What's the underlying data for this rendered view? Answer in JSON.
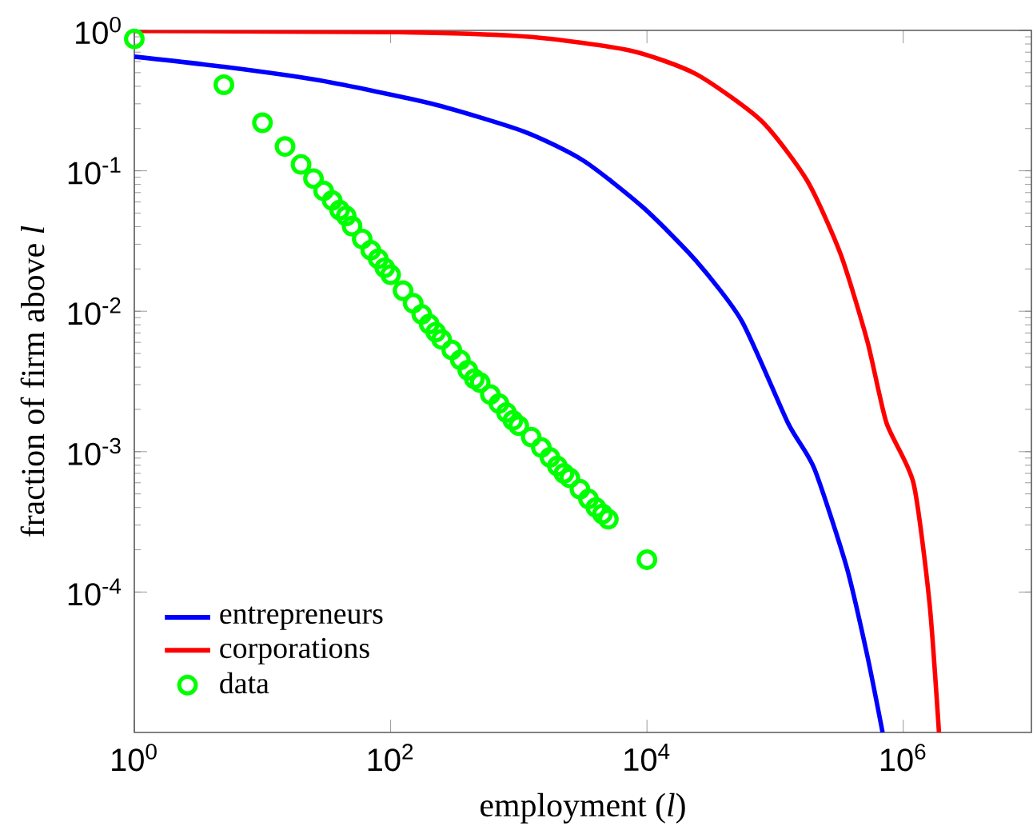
{
  "chart_data": {
    "type": "line",
    "xlabel": "employment (*l*)",
    "ylabel": "fraction of firm above *l*",
    "log": "xy",
    "legend": "bottom left",
    "xlim": [
      1,
      10000000
    ],
    "ylim": [
      1e-05,
      1
    ],
    "xticks": [
      {
        "value": 1,
        "label": "10$^{0}$"
      },
      {
        "value": 100,
        "label": "10$^{2}$"
      },
      {
        "value": 10000,
        "label": "10$^{4}$"
      },
      {
        "value": 1000000,
        "label": "10$^{6}$"
      }
    ],
    "yticks": [
      {
        "value": 0.0001,
        "label": "10$^{-4}$"
      },
      {
        "value": 0.001,
        "label": "10$^{-3}$"
      },
      {
        "value": 0.01,
        "label": "10$^{-2}$"
      },
      {
        "value": 0.1,
        "label": "10$^{-1}$"
      },
      {
        "value": 1,
        "label": "10$^{0}$"
      }
    ],
    "series": [
      {
        "name": "entrepreneurs",
        "type": "line",
        "color": "#0000ff",
        "x": [
          1,
          5,
          28,
          210,
          1100,
          3200,
          9300,
          24000,
          55000,
          126000,
          202000,
          362000,
          525000,
          690000
        ],
        "values": [
          0.65,
          0.55,
          0.44,
          0.3,
          0.19,
          0.118,
          0.055,
          0.023,
          0.0085,
          0.0016,
          0.00076,
          0.00015,
          3.5e-05,
          1e-05
        ]
      },
      {
        "name": "corporations",
        "type": "line",
        "color": "#ff0000",
        "x": [
          1,
          115,
          1200,
          7300,
          24000,
          78000,
          178000,
          324000,
          525000,
          740000,
          1200000,
          1600000,
          1900000
        ],
        "values": [
          0.99,
          0.97,
          0.9,
          0.72,
          0.49,
          0.227,
          0.085,
          0.0256,
          0.0061,
          0.0016,
          0.0006,
          8.5e-05,
          1e-05
        ]
      },
      {
        "name": "data",
        "type": "scatter",
        "marker": "circle",
        "color": "#00ff00",
        "x": [
          1,
          5,
          10,
          15,
          20,
          25,
          30,
          35,
          40,
          45,
          50,
          60,
          70,
          80,
          90,
          100,
          125,
          150,
          175,
          200,
          225,
          250,
          300,
          350,
          400,
          450,
          500,
          600,
          700,
          800,
          900,
          1000,
          1250,
          1500,
          1750,
          2000,
          2250,
          2500,
          3000,
          3500,
          4000,
          4500,
          5000,
          10000
        ],
        "values": [
          0.87,
          0.41,
          0.22,
          0.149,
          0.111,
          0.088,
          0.072,
          0.0615,
          0.0525,
          0.0477,
          0.0404,
          0.0327,
          0.0272,
          0.0236,
          0.0204,
          0.0182,
          0.014,
          0.0114,
          0.0095,
          0.0081,
          0.0071,
          0.0063,
          0.0053,
          0.0045,
          0.0038,
          0.0033,
          0.0031,
          0.00255,
          0.0022,
          0.0019,
          0.00167,
          0.00153,
          0.00127,
          0.00107,
          0.00091,
          0.00079,
          0.0007,
          0.00065,
          0.00054,
          0.00046,
          0.0004,
          0.00036,
          0.00033,
          0.00017
        ]
      }
    ]
  }
}
